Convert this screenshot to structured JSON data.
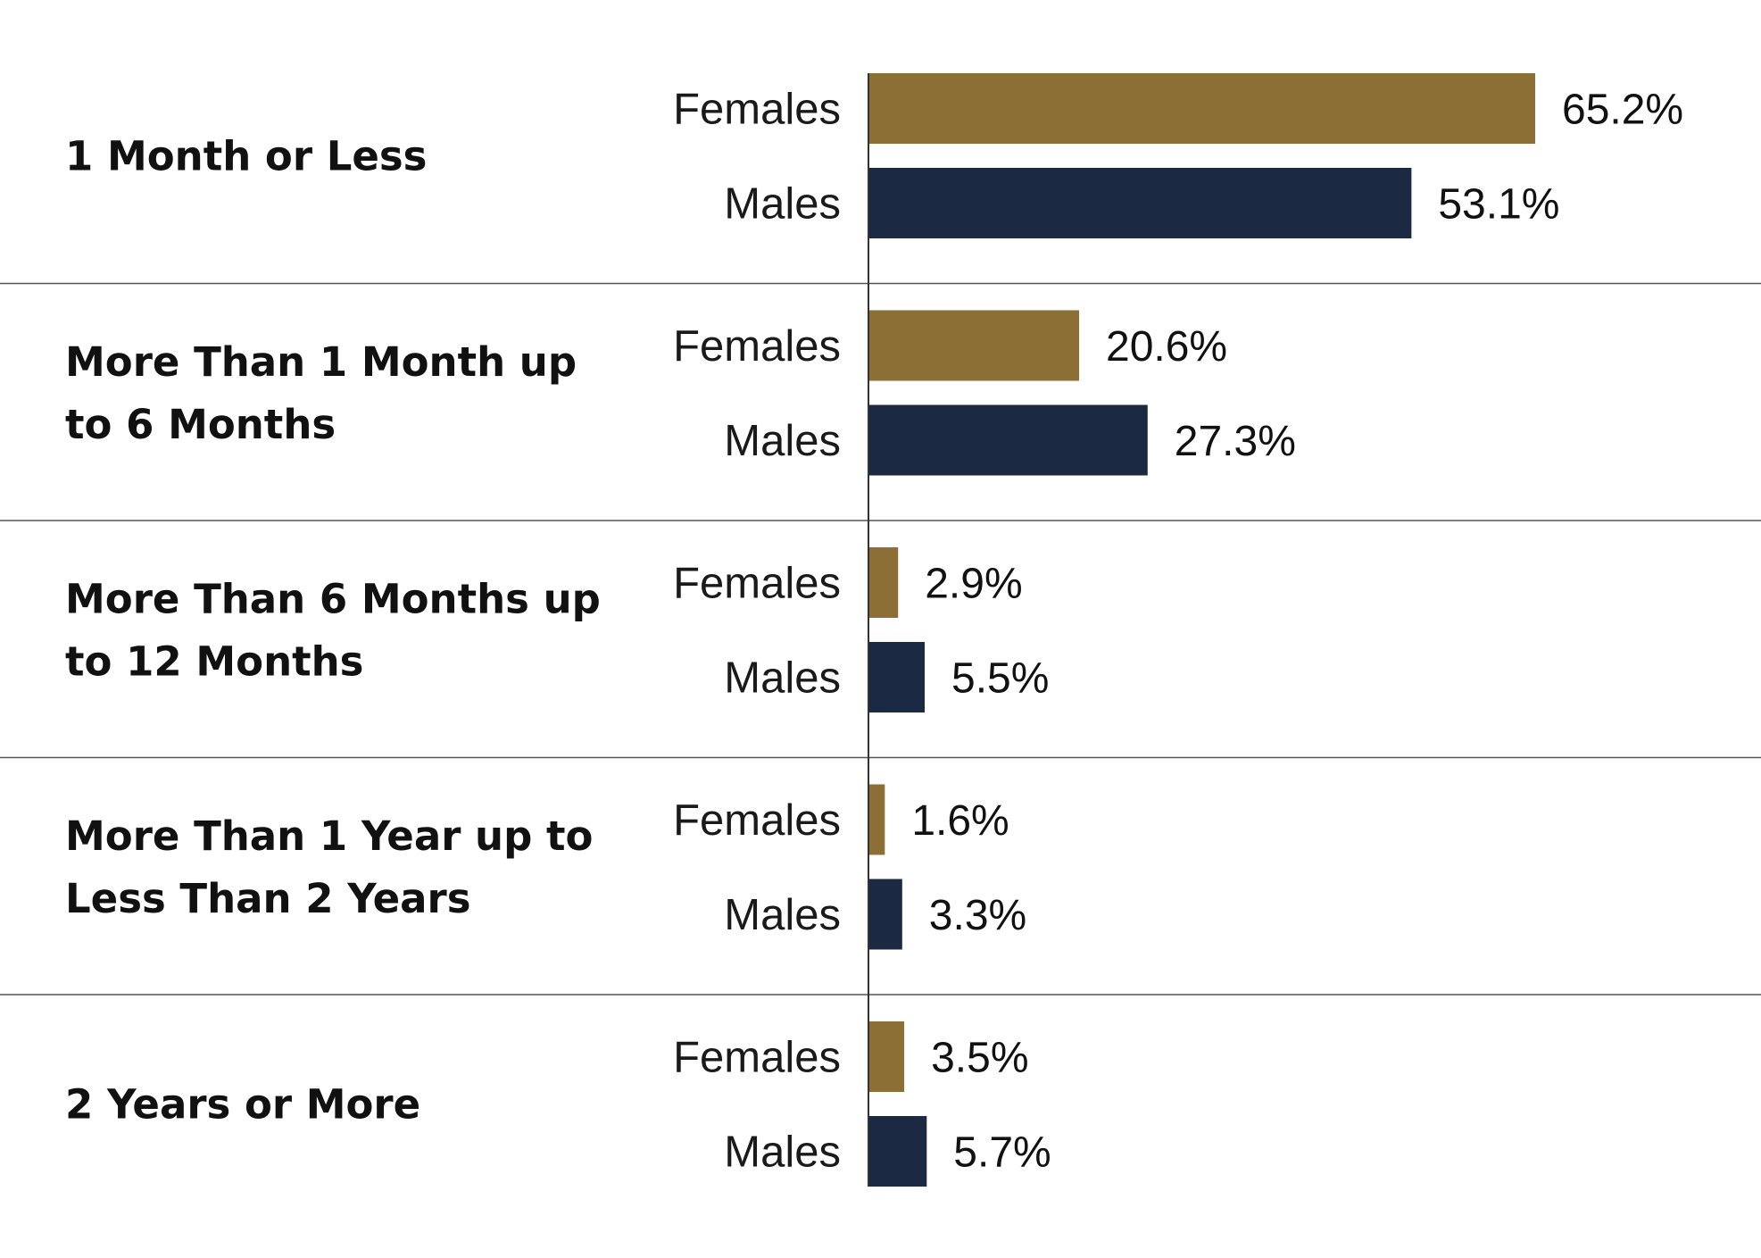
{
  "chart_data": {
    "type": "bar",
    "orientation": "horizontal",
    "title": "",
    "xlabel": "",
    "ylabel": "",
    "xlim": [
      0,
      80
    ],
    "grid": false,
    "legend": "none",
    "value_suffix": "%",
    "categories": [
      [
        "1 Month or Less"
      ],
      [
        "More Than 1 Month up",
        "to 6 Months"
      ],
      [
        "More Than 6 Months up",
        "to 12 Months"
      ],
      [
        "More Than 1 Year up to",
        "Less Than 2 Years"
      ],
      [
        "2 Years or More"
      ]
    ],
    "series": [
      {
        "name": "Females",
        "color": "#8B6F34",
        "values": [
          65.2,
          20.6,
          2.9,
          1.6,
          3.5
        ]
      },
      {
        "name": "Males",
        "color": "#1B2942",
        "values": [
          53.1,
          27.3,
          5.5,
          3.3,
          5.7
        ]
      }
    ],
    "colors": {
      "axis": "#333333",
      "separator": "#555555"
    }
  }
}
